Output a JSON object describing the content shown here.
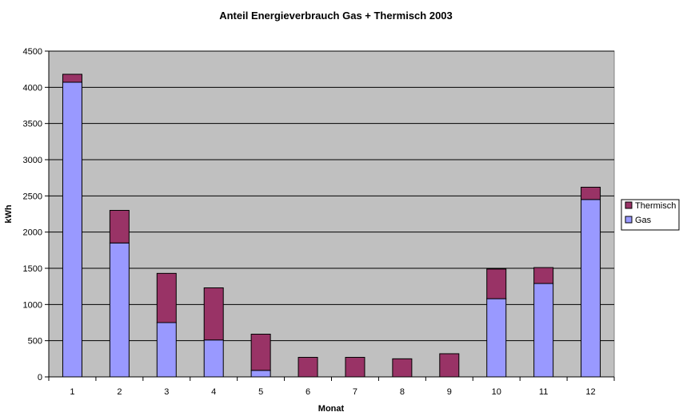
{
  "chart_data": {
    "type": "bar",
    "stacked": true,
    "title": "Anteil Energieverbrauch Gas + Thermisch 2003",
    "xlabel": "Monat",
    "ylabel": "kWh",
    "categories": [
      "1",
      "2",
      "3",
      "4",
      "5",
      "6",
      "7",
      "8",
      "9",
      "10",
      "11",
      "12"
    ],
    "ylim": [
      0,
      4500
    ],
    "yticks": [
      "0",
      "500",
      "1000",
      "1500",
      "2000",
      "2500",
      "3000",
      "3500",
      "4000",
      "4500"
    ],
    "grid": true,
    "legend": "right",
    "series": [
      {
        "name": "Gas",
        "color": "#9999ff",
        "values": [
          4070,
          1850,
          750,
          510,
          90,
          0,
          0,
          0,
          0,
          1080,
          1290,
          2450
        ]
      },
      {
        "name": "Thermisch",
        "color": "#993366",
        "values": [
          110,
          450,
          680,
          720,
          500,
          270,
          270,
          250,
          320,
          410,
          220,
          170
        ]
      }
    ],
    "legend_entries": [
      "Thermisch",
      "Gas"
    ],
    "plot_background": "#c0c0c0"
  }
}
